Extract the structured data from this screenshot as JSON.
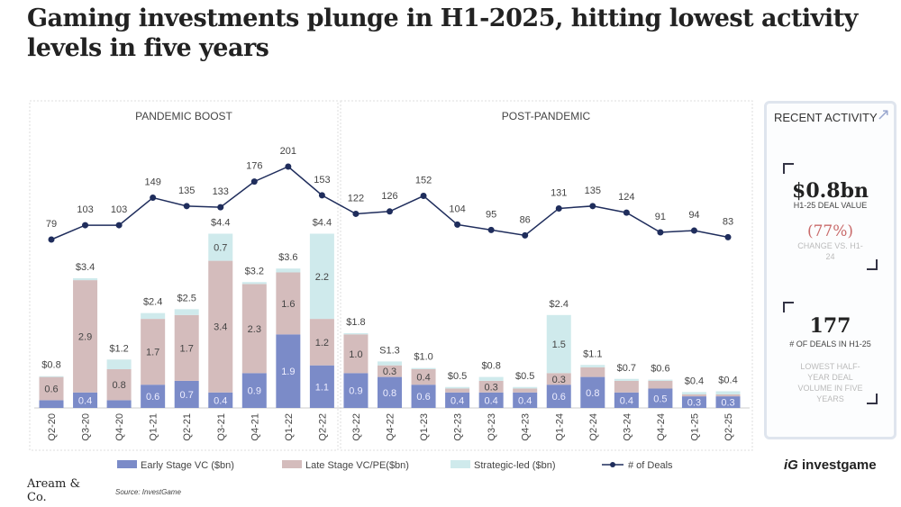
{
  "title": "Gaming investments plunge in H1-2025, hitting lowest activity levels in five years",
  "source": "Source: InvestGame",
  "logo_left": "Aream & Co.",
  "logo_right": "investgame",
  "side": {
    "heading": "RECENT ACTIVITY",
    "value1": "$0.8bn",
    "label1": "H1-25 DEAL VALUE",
    "change": "(77%)",
    "change_label": "CHANGE VS. H1-24",
    "value2": "177",
    "label2": "# OF DEALS IN H1-25",
    "note": "LOWEST HALF-YEAR DEAL VOLUME IN FIVE YEARS",
    "change_color": "#c96b6b"
  },
  "chart_data": {
    "type": "bar",
    "panels": [
      "PANDEMIC BOOST",
      "POST-PANDEMIC"
    ],
    "categories": [
      "Q2-20",
      "Q3-20",
      "Q4-20",
      "Q1-21",
      "Q2-21",
      "Q3-21",
      "Q4-21",
      "Q1-22",
      "Q2-22",
      "Q3-22",
      "Q4-22",
      "Q1-23",
      "Q2-23",
      "Q3-23",
      "Q4-23",
      "Q1-24",
      "Q2-24",
      "Q3-24",
      "Q4-24",
      "Q1-25",
      "Q2-25"
    ],
    "totals": [
      "$0.8",
      "$3.4",
      "$1.2",
      "$2.4",
      "$2.5",
      "$4.4",
      "$3.2",
      "$3.6",
      "$4.4",
      "$1.8",
      "S1.3",
      "$1.0",
      "$0.5",
      "$0.8",
      "$0.5",
      "$2.4",
      "$1.1",
      "$0.7",
      "$0.6",
      "$0.4",
      "$0.4"
    ],
    "series": [
      {
        "name": "Early Stage VC ($bn)",
        "color": "#7b8bc8",
        "values": [
          0.2,
          0.4,
          0.2,
          0.6,
          0.7,
          0.4,
          0.9,
          1.9,
          1.1,
          0.9,
          0.8,
          0.6,
          0.4,
          0.4,
          0.4,
          0.6,
          0.8,
          0.4,
          0.5,
          0.3,
          0.3
        ],
        "labels": [
          null,
          "0.4",
          null,
          "0.6",
          "0.7",
          "0.4",
          "0.9",
          "1.9",
          "1.1",
          "0.9",
          "0.8",
          "0.6",
          "0.4",
          "0.4",
          "0.4",
          "0.6",
          "0.8",
          "0.4",
          "0.5",
          "0.3",
          "0.3"
        ]
      },
      {
        "name": "Late Stage VC/PE($bn)",
        "color": "#d4bcbc",
        "values": [
          0.6,
          2.9,
          0.8,
          1.7,
          1.7,
          3.4,
          2.3,
          1.6,
          1.2,
          1.0,
          0.3,
          0.4,
          0.1,
          0.3,
          0.1,
          0.3,
          0.25,
          0.3,
          0.2,
          0.05,
          0.05
        ],
        "labels": [
          "0.6",
          "2.9",
          "0.8",
          "1.7",
          "1.7",
          "3.4",
          "2.3",
          "1.6",
          "1.2",
          "1.0",
          "0.3",
          "0.4",
          null,
          "0.3",
          null,
          "0.3",
          null,
          null,
          null,
          null,
          null
        ]
      },
      {
        "name": "Strategic-led ($bn)",
        "color": "#cfeaec",
        "values": [
          0.02,
          0.05,
          0.25,
          0.15,
          0.15,
          0.7,
          0.05,
          0.1,
          2.2,
          0.03,
          0.1,
          0.03,
          0.04,
          0.1,
          0.04,
          1.5,
          0.06,
          0.05,
          0.03,
          0.06,
          0.08
        ],
        "labels": [
          null,
          null,
          null,
          null,
          null,
          "0.7",
          null,
          null,
          "2.2",
          null,
          null,
          null,
          null,
          null,
          null,
          "1.5",
          null,
          null,
          null,
          null,
          null
        ]
      }
    ],
    "line": {
      "name": "# of Deals",
      "color": "#1f2d5c",
      "values": [
        79,
        103,
        103,
        149,
        135,
        133,
        176,
        201,
        153,
        122,
        126,
        152,
        104,
        95,
        86,
        131,
        135,
        124,
        91,
        94,
        83
      ]
    },
    "legend_position": "bottom"
  }
}
